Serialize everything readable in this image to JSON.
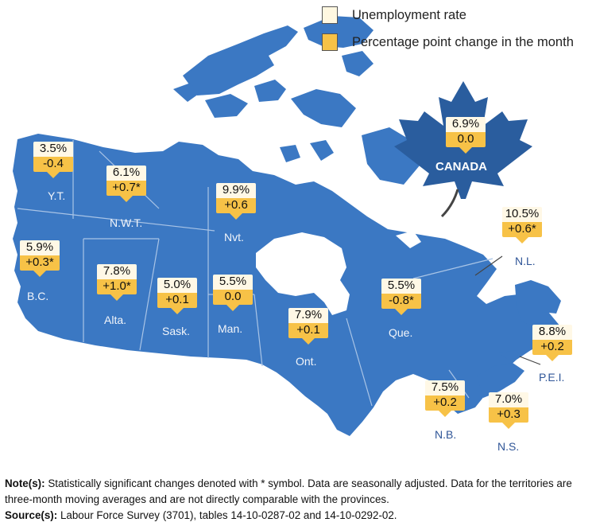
{
  "legend": {
    "unemployment_rate": "Unemployment rate",
    "percentage_change": "Percentage point change in the month"
  },
  "canada": {
    "label": "CANADA",
    "rate": "6.9%",
    "change": "0.0"
  },
  "regions": {
    "yt": {
      "name": "Y.T.",
      "rate": "3.5%",
      "change": "-0.4"
    },
    "nwt": {
      "name": "N.W.T.",
      "rate": "6.1%",
      "change": "+0.7*"
    },
    "nvt": {
      "name": "Nvt.",
      "rate": "9.9%",
      "change": "+0.6"
    },
    "bc": {
      "name": "B.C.",
      "rate": "5.9%",
      "change": "+0.3*"
    },
    "ab": {
      "name": "Alta.",
      "rate": "7.8%",
      "change": "+1.0*"
    },
    "sk": {
      "name": "Sask.",
      "rate": "5.0%",
      "change": "+0.1"
    },
    "mb": {
      "name": "Man.",
      "rate": "5.5%",
      "change": "0.0"
    },
    "on": {
      "name": "Ont.",
      "rate": "7.9%",
      "change": "+0.1"
    },
    "qc": {
      "name": "Que.",
      "rate": "5.5%",
      "change": "-0.8*"
    },
    "nl": {
      "name": "N.L.",
      "rate": "10.5%",
      "change": "+0.6*"
    },
    "pe": {
      "name": "P.E.I.",
      "rate": "8.8%",
      "change": "+0.2"
    },
    "nb": {
      "name": "N.B.",
      "rate": "7.5%",
      "change": "+0.2"
    },
    "ns": {
      "name": "N.S.",
      "rate": "7.0%",
      "change": "+0.3"
    }
  },
  "notes": {
    "note_label": "Note(s):",
    "note_text": " Statistically significant changes denoted with * symbol. Data are seasonally adjusted. Data for the territories are three-month moving averages and are not directly comparable with the provinces.",
    "source_label": "Source(s):",
    "source_text": " Labour Force Survey (3701), tables 14-10-0287-02 and 14-10-0292-02."
  },
  "colors": {
    "land": "#3b78c3",
    "border": "#a9c4e6",
    "rate_box": "#fff8e6",
    "change_box": "#f7c247",
    "leaf": "#2a5d9e"
  }
}
